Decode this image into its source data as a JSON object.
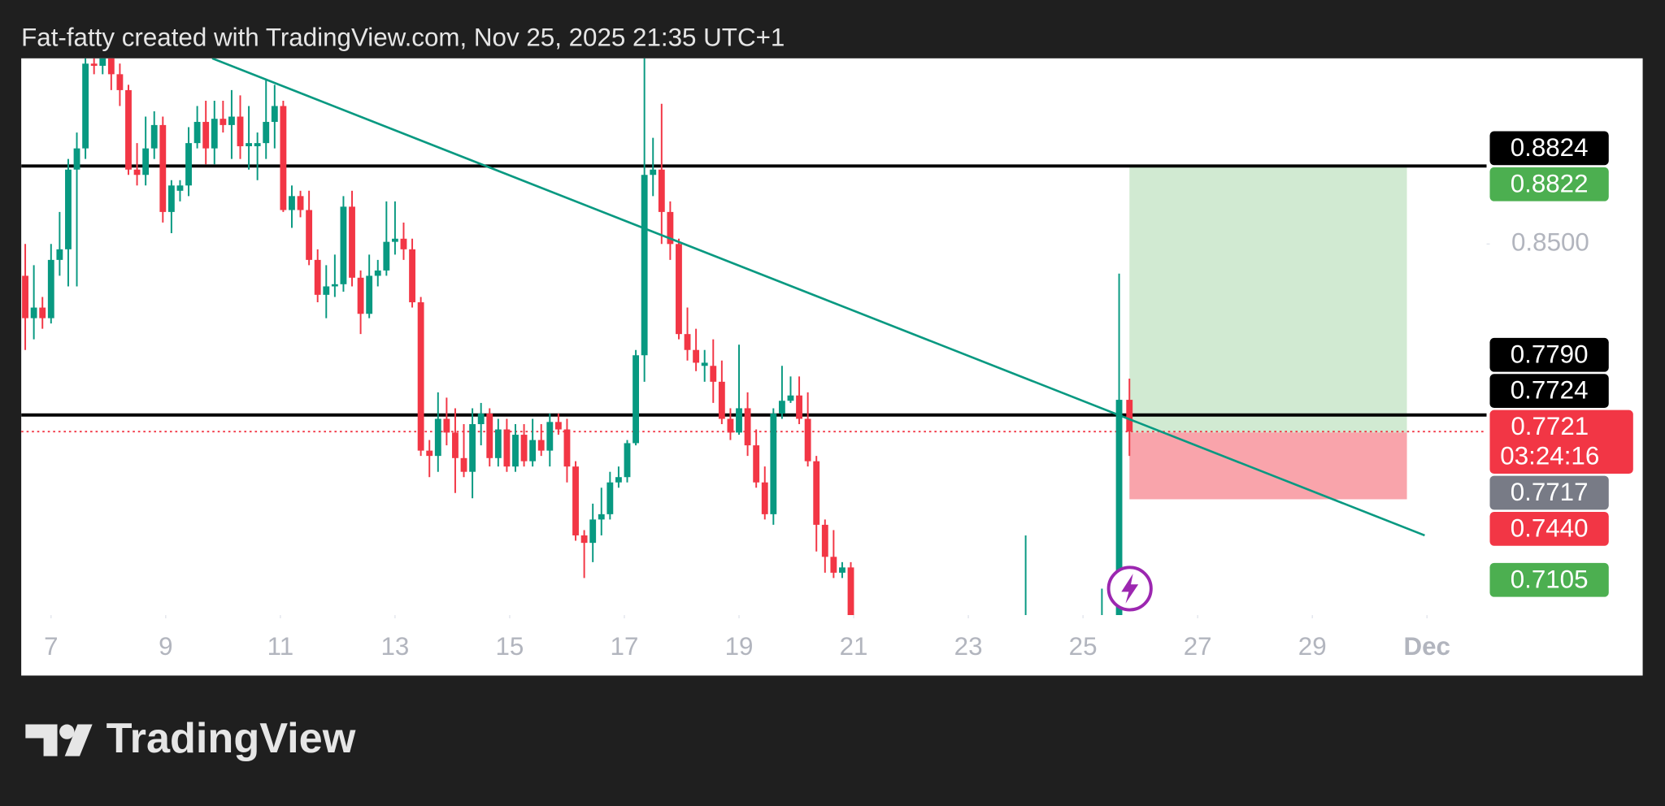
{
  "chart_data": {
    "type": "candlestick",
    "title": "Fat-fatty created with TradingView.com, Nov 25, 2025 21:35 UTC+1",
    "brand": "TradingView",
    "colors": {
      "up": "#089981",
      "down": "#f23645"
    },
    "xlim": [
      6.48,
      32.04
    ],
    "xticks": [
      7,
      9,
      11,
      13,
      15,
      17,
      19,
      21,
      23,
      25,
      27,
      29,
      {
        "value": 31,
        "label": "Dec"
      }
    ],
    "ylim": [
      0.6959,
      0.9271
    ],
    "yticks": [
      {
        "value": 0.85,
        "label": "0.8500"
      }
    ],
    "x": [
      6.55,
      6.7,
      6.85,
      7,
      7.15,
      7.3,
      7.45,
      7.6,
      7.75,
      7.9,
      8.05,
      8.2,
      8.35,
      8.5,
      8.65,
      8.8,
      8.95,
      9.1,
      9.25,
      9.4,
      9.55,
      9.7,
      9.85,
      10,
      10.15,
      10.3,
      10.45,
      10.6,
      10.75,
      10.9,
      11.05,
      11.2,
      11.35,
      11.5,
      11.65,
      11.8,
      11.95,
      12.1,
      12.25,
      12.4,
      12.55,
      12.7,
      12.85,
      13,
      13.15,
      13.3,
      13.45,
      13.6,
      13.75,
      13.9,
      14.05,
      14.2,
      14.35,
      14.5,
      14.65,
      14.8,
      14.95,
      15.1,
      15.25,
      15.4,
      15.55,
      15.7,
      15.85,
      16,
      16.15,
      16.3,
      16.45,
      16.6,
      16.75,
      16.9,
      17.05,
      17.2,
      17.35,
      17.5,
      17.65,
      17.8,
      17.95,
      18.1,
      18.25,
      18.4,
      18.55,
      18.7,
      18.85,
      19,
      19.15,
      19.3,
      19.45,
      19.6,
      19.75,
      19.9,
      20.05,
      20.2,
      20.35,
      20.5,
      20.65,
      20.8,
      20.95,
      24,
      25.33,
      25.63,
      25.81
    ],
    "open": [
      0.8368,
      0.8192,
      0.8236,
      0.8192,
      0.8434,
      0.8478,
      0.8809,
      0.8897,
      0.9249,
      0.924,
      0.9271,
      0.9205,
      0.9139,
      0.8809,
      0.8787,
      0.8897,
      0.8994,
      0.8633,
      0.8721,
      0.8743,
      0.8919,
      0.9007,
      0.8897,
      0.902,
      0.8994,
      0.9029,
      0.8906,
      0.8906,
      0.8919,
      0.9007,
      0.9073,
      0.8641,
      0.8699,
      0.8641,
      0.8434,
      0.8289,
      0.8324,
      0.8333,
      0.8655,
      0.836,
      0.821,
      0.8368,
      0.839,
      0.8509,
      0.8522,
      0.8478,
      0.8258,
      0.7642,
      0.762,
      0.7774,
      0.7717,
      0.7611,
      0.7554,
      0.7752,
      0.7796,
      0.7611,
      0.773,
      0.7576,
      0.7708,
      0.7598,
      0.7686,
      0.7642,
      0.7761,
      0.773,
      0.7576,
      0.729,
      0.7259,
      0.7356,
      0.7378,
      0.751,
      0.7532,
      0.7673,
      0.8038,
      0.8787,
      0.8809,
      0.8633,
      0.85,
      0.8126,
      0.806,
      0.7994,
      0.7994,
      0.7928,
      0.7774,
      0.7717,
      0.7818,
      0.7664,
      0.751,
      0.7378,
      0.7796,
      0.7849,
      0.7871,
      0.7774,
      0.7598,
      0.7334,
      0.7201,
      0.7135,
      0.7157,
      0.675,
      0.67,
      0.68,
      0.7853
    ],
    "high": [
      0.85,
      0.8412,
      0.828,
      0.85,
      0.8633,
      0.8853,
      0.8963,
      0.9271,
      0.9271,
      0.9271,
      0.9271,
      0.9249,
      0.9161,
      0.8919,
      0.9029,
      0.9051,
      0.9029,
      0.8765,
      0.8765,
      0.8985,
      0.9073,
      0.9095,
      0.9095,
      0.9095,
      0.9139,
      0.9117,
      0.9073,
      0.8963,
      0.9183,
      0.9161,
      0.9095,
      0.8743,
      0.8721,
      0.8721,
      0.8478,
      0.8412,
      0.8456,
      0.8699,
      0.8721,
      0.839,
      0.8456,
      0.8434,
      0.8677,
      0.8677,
      0.8589,
      0.8522,
      0.828,
      0.7686,
      0.7884,
      0.7862,
      0.7818,
      0.7752,
      0.7818,
      0.784,
      0.7818,
      0.7774,
      0.7774,
      0.7752,
      0.7752,
      0.7774,
      0.7752,
      0.7796,
      0.7796,
      0.7774,
      0.7598,
      0.7312,
      0.7422,
      0.7488,
      0.7554,
      0.7576,
      0.7686,
      0.806,
      0.9271,
      0.8941,
      0.9082,
      0.8677,
      0.8522,
      0.8236,
      0.8148,
      0.806,
      0.8104,
      0.8016,
      0.7818,
      0.8082,
      0.7884,
      0.773,
      0.7576,
      0.7818,
      0.7994,
      0.795,
      0.795,
      0.7884,
      0.762,
      0.7356,
      0.7312,
      0.7179,
      0.7179,
      0.729,
      0.7069,
      0.8377,
      0.7941
    ],
    "low": [
      0.806,
      0.8104,
      0.8148,
      0.817,
      0.8368,
      0.8324,
      0.8324,
      0.8853,
      0.9205,
      0.9205,
      0.9139,
      0.9073,
      0.8787,
      0.8743,
      0.8743,
      0.8853,
      0.8589,
      0.8545,
      0.8677,
      0.8699,
      0.8897,
      0.8831,
      0.8831,
      0.8963,
      0.8853,
      0.8853,
      0.8809,
      0.8765,
      0.8853,
      0.8897,
      0.8633,
      0.8567,
      0.8611,
      0.8412,
      0.8258,
      0.8192,
      0.828,
      0.8302,
      0.8324,
      0.8126,
      0.8192,
      0.8324,
      0.8368,
      0.8456,
      0.8434,
      0.8236,
      0.762,
      0.7532,
      0.7554,
      0.7664,
      0.7466,
      0.7532,
      0.7444,
      0.7664,
      0.7576,
      0.7576,
      0.7554,
      0.7554,
      0.7576,
      0.7576,
      0.762,
      0.7576,
      0.7708,
      0.751,
      0.7268,
      0.7113,
      0.7179,
      0.729,
      0.7356,
      0.7488,
      0.751,
      0.7664,
      0.7928,
      0.8699,
      0.85,
      0.8434,
      0.8104,
      0.8016,
      0.7972,
      0.7928,
      0.784,
      0.7752,
      0.7686,
      0.7708,
      0.762,
      0.7488,
      0.7356,
      0.7334,
      0.7774,
      0.784,
      0.7752,
      0.7576,
      0.7223,
      0.7135,
      0.7113,
      0.7113,
      0.67,
      0.67,
      0.665,
      0.675,
      0.762
    ],
    "close": [
      0.8192,
      0.8236,
      0.8192,
      0.8434,
      0.8478,
      0.8809,
      0.8897,
      0.9249,
      0.924,
      0.9271,
      0.9205,
      0.9139,
      0.8809,
      0.8787,
      0.8897,
      0.8994,
      0.8633,
      0.8743,
      0.8743,
      0.8919,
      0.9007,
      0.8897,
      0.902,
      0.8994,
      0.9029,
      0.8906,
      0.8919,
      0.8919,
      0.9007,
      0.9073,
      0.8641,
      0.8699,
      0.8641,
      0.8434,
      0.8289,
      0.8324,
      0.8333,
      0.8655,
      0.836,
      0.821,
      0.8368,
      0.839,
      0.8509,
      0.8522,
      0.8478,
      0.8258,
      0.7642,
      0.762,
      0.7774,
      0.7717,
      0.7611,
      0.7554,
      0.7752,
      0.7796,
      0.7611,
      0.773,
      0.7576,
      0.7708,
      0.7598,
      0.7686,
      0.7642,
      0.7761,
      0.773,
      0.7576,
      0.729,
      0.7259,
      0.7356,
      0.7378,
      0.751,
      0.7532,
      0.7673,
      0.8038,
      0.8787,
      0.8809,
      0.8633,
      0.85,
      0.8126,
      0.806,
      0.8007,
      0.8007,
      0.7928,
      0.7774,
      0.7717,
      0.7818,
      0.7664,
      0.751,
      0.7378,
      0.7796,
      0.7849,
      0.7871,
      0.7774,
      0.7598,
      0.7334,
      0.7201,
      0.7135,
      0.7157,
      0.68,
      0.68,
      0.69,
      0.7853,
      0.7721
    ],
    "horizontal_lines": [
      0.8824,
      0.779
    ],
    "trendline": {
      "x": [
        9.81,
        30.96
      ],
      "y": [
        0.9271,
        0.729
      ],
      "color": "#089981"
    },
    "position": {
      "x": [
        25.81,
        30.65
      ],
      "target": 0.8822,
      "entry": 0.7717,
      "stop": 0.744
    },
    "price_labels": [
      {
        "value": 0.8824,
        "color": "#000000"
      },
      {
        "value": 0.8822,
        "color": "#4caf50"
      },
      {
        "value": 0.779,
        "label": "0.7790",
        "color": "#000000"
      },
      {
        "value": 0.7724,
        "color": "#000000"
      },
      {
        "value": 0.7721,
        "color": "#f23645",
        "countdown": "03:24:16"
      },
      {
        "value": 0.7717,
        "color": "#787b86"
      },
      {
        "value": 0.744,
        "label": "0.7440",
        "color": "#f23645"
      },
      {
        "value": 0.7105,
        "color": "#4caf50"
      }
    ]
  }
}
